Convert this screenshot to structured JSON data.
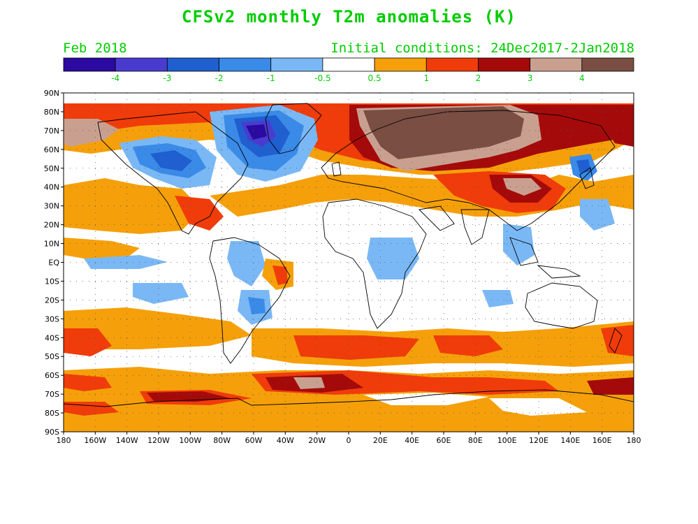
{
  "title": "CFSv2 monthly T2m anomalies (K)",
  "month": "Feb 2018",
  "initial_conditions": "Initial conditions: 24Dec2017-2Jan2018",
  "colorbar": {
    "labels": [
      "-4",
      "-3",
      "-2",
      "-1",
      "-0.5",
      "0.5",
      "1",
      "2",
      "3",
      "4"
    ],
    "colors": [
      "#2a0aa0",
      "#4a3bd0",
      "#1f5fd0",
      "#3a8ae8",
      "#7ab8f5",
      "#ffffff",
      "#f5a00a",
      "#f03c0a",
      "#a50a0a",
      "#c9a090",
      "#7a4e42"
    ]
  },
  "map": {
    "type": "global lat-lon anomaly map",
    "lat_labels": [
      "90N",
      "80N",
      "70N",
      "60N",
      "50N",
      "40N",
      "30N",
      "20N",
      "10N",
      "EQ",
      "10S",
      "20S",
      "30S",
      "40S",
      "50S",
      "60S",
      "70S",
      "80S",
      "90S"
    ],
    "lon_labels": [
      "180",
      "160W",
      "140W",
      "120W",
      "100W",
      "80W",
      "60W",
      "40W",
      "20W",
      "0",
      "20E",
      "40E",
      "60E",
      "80E",
      "100E",
      "120E",
      "140E",
      "160E",
      "180"
    ],
    "lon_range": [
      -180,
      180
    ],
    "lat_range": [
      -90,
      90
    ],
    "grid": "dotted"
  }
}
